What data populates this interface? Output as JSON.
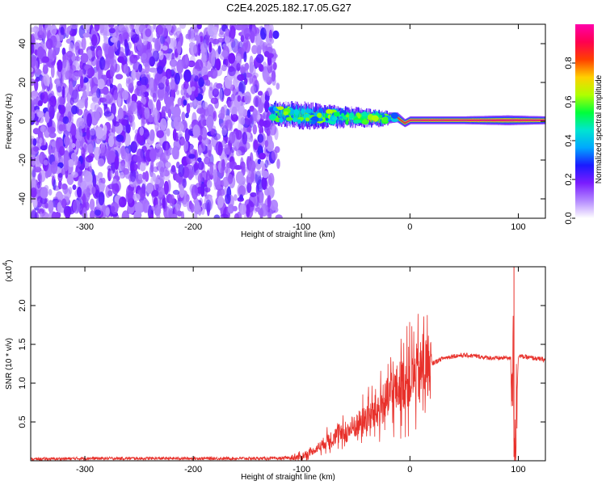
{
  "title": "C2E4.2025.182.17.05.G27",
  "chart_data": [
    {
      "type": "heatmap",
      "xlabel": "Height of straight line (km)",
      "ylabel": "Frequency (Hz)",
      "xlim": [
        -350,
        125
      ],
      "ylim": [
        -50,
        50
      ],
      "x_ticks": [
        -300,
        -200,
        -100,
        0,
        100
      ],
      "y_ticks": [
        -40,
        -20,
        0,
        20,
        40
      ],
      "colorbar": {
        "label": "Normalized spectral amplitude",
        "range": [
          0,
          1
        ],
        "ticks": [
          "0.0",
          "0.2",
          "0.4",
          "0.6",
          "0.8"
        ],
        "colors": [
          "#ffffff",
          "#b388ff",
          "#7a1cff",
          "#1a1aff",
          "#00a8ff",
          "#00e5d0",
          "#00ff3a",
          "#b0ff00",
          "#ffd000",
          "#ff4000",
          "#ff0050",
          "#ff00aa"
        ]
      },
      "noise_region": {
        "x_from": -350,
        "x_to": -125,
        "freq_from": -50,
        "freq_to": 50
      },
      "signal_band": [
        {
          "x": -128,
          "freq": 4.0,
          "width": 10,
          "level": 0.45
        },
        {
          "x": -100,
          "freq": 3.0,
          "width": 12,
          "level": 0.55
        },
        {
          "x": -75,
          "freq": 2.5,
          "width": 10,
          "level": 0.55
        },
        {
          "x": -50,
          "freq": 2.0,
          "width": 8,
          "level": 0.6
        },
        {
          "x": -25,
          "freq": 1.5,
          "width": 6,
          "level": 0.75
        },
        {
          "x": -12,
          "freq": 2.0,
          "width": 5,
          "level": 0.85
        },
        {
          "x": -5,
          "freq": -1.0,
          "width": 4,
          "level": 0.9
        },
        {
          "x": 0,
          "freq": 0.5,
          "width": 4,
          "level": 0.95
        },
        {
          "x": 50,
          "freq": 0.5,
          "width": 4,
          "level": 0.95
        },
        {
          "x": 90,
          "freq": 0.5,
          "width": 5,
          "level": 0.95
        },
        {
          "x": 125,
          "freq": 0.5,
          "width": 4,
          "level": 0.95
        }
      ]
    },
    {
      "type": "line",
      "xlabel": "Height of straight line (km)",
      "ylabel": "SNR (10 * v/v)",
      "y_scale_note": "(x10",
      "y_scale_exponent": "4",
      "xlim": [
        -350,
        125
      ],
      "ylim": [
        0,
        2.5
      ],
      "x_ticks": [
        -300,
        -200,
        -100,
        0,
        100
      ],
      "y_ticks": [
        "0.5",
        "1.0",
        "1.5",
        "2.0"
      ],
      "series": [
        {
          "color": "#e8302a",
          "x": [
            -350,
            -300,
            -250,
            -200,
            -150,
            -120,
            -100,
            -90,
            -80,
            -70,
            -60,
            -50,
            -40,
            -30,
            -20,
            -10,
            0,
            10,
            20,
            30,
            40,
            50,
            60,
            70,
            80,
            90,
            95,
            97,
            100,
            110,
            125
          ],
          "y": [
            0.02,
            0.03,
            0.03,
            0.03,
            0.03,
            0.03,
            0.05,
            0.12,
            0.22,
            0.32,
            0.35,
            0.45,
            0.55,
            0.65,
            0.8,
            0.95,
            1.05,
            1.15,
            1.25,
            1.32,
            1.35,
            1.36,
            1.35,
            1.33,
            1.32,
            1.33,
            1.3,
            0.1,
            1.35,
            1.33,
            1.3
          ]
        }
      ]
    }
  ]
}
